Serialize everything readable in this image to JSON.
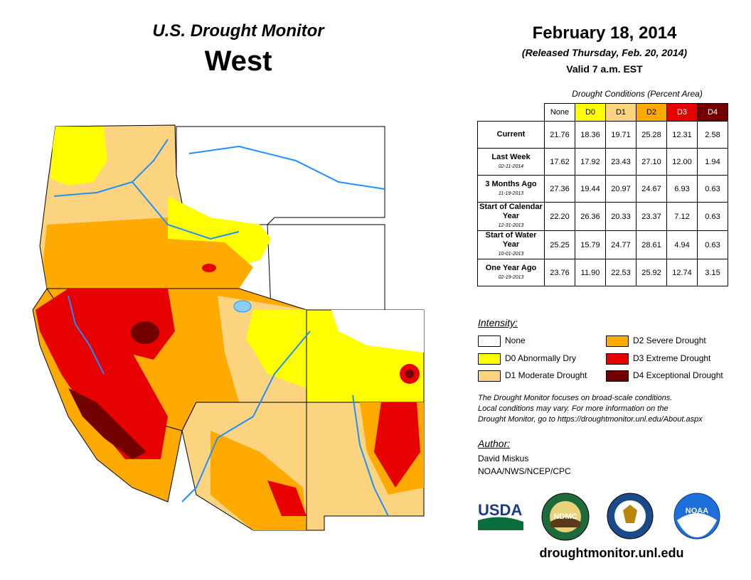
{
  "header": {
    "title": "U.S. Drought Monitor",
    "region": "West",
    "date": "February 18, 2014",
    "released": "(Released Thursday, Feb. 20, 2014)",
    "valid": "Valid 7 a.m. EST"
  },
  "table": {
    "caption": "Drought Conditions (Percent Area)",
    "columns": [
      "None",
      "D0",
      "D1",
      "D2",
      "D3",
      "D4"
    ],
    "rows": [
      {
        "label": "Current",
        "sub": "",
        "values": [
          "21.76",
          "18.36",
          "19.71",
          "25.28",
          "12.31",
          "2.58"
        ]
      },
      {
        "label": "Last Week",
        "sub": "02-11-2014",
        "values": [
          "17.62",
          "17.92",
          "23.43",
          "27.10",
          "12.00",
          "1.94"
        ]
      },
      {
        "label": "3 Months Ago",
        "sub": "11-19-2013",
        "values": [
          "27.36",
          "19.44",
          "20.97",
          "24.67",
          "6.93",
          "0.63"
        ]
      },
      {
        "label": "Start of Calendar Year",
        "sub": "12-31-2013",
        "values": [
          "22.20",
          "26.36",
          "20.33",
          "23.37",
          "7.12",
          "0.63"
        ]
      },
      {
        "label": "Start of Water Year",
        "sub": "10-01-2013",
        "values": [
          "25.25",
          "15.79",
          "24.77",
          "28.61",
          "4.94",
          "0.63"
        ]
      },
      {
        "label": "One Year Ago",
        "sub": "02-19-2013",
        "values": [
          "23.76",
          "11.90",
          "22.53",
          "25.92",
          "12.74",
          "3.15"
        ]
      }
    ]
  },
  "legend": {
    "title": "Intensity:",
    "items": [
      {
        "label": "None",
        "color": "#ffffff"
      },
      {
        "label": "D0 Abnormally Dry",
        "color": "#ffff00"
      },
      {
        "label": "D1 Moderate Drought",
        "color": "#fcd37f"
      },
      {
        "label": "D2 Severe Drought",
        "color": "#ffaa00"
      },
      {
        "label": "D3 Extreme Drought",
        "color": "#e60000"
      },
      {
        "label": "D4 Exceptional Drought",
        "color": "#730000"
      }
    ]
  },
  "note": {
    "line1": "The Drought Monitor focuses on broad-scale conditions.",
    "line2": "Local conditions may vary. For more information on the",
    "line3": "Drought Monitor, go to https://droughtmonitor.unl.edu/About.aspx"
  },
  "author": {
    "label": "Author:",
    "name": "David Miskus",
    "org": "NOAA/NWS/NCEP/CPC"
  },
  "logos": {
    "usda": "USDA",
    "ndmc": "NDMC",
    "noaa": "NOAA"
  },
  "colors": {
    "water": "#1e90ff",
    "none": "#ffffff",
    "d0": "#ffff00",
    "d1": "#fcd37f",
    "d2": "#ffaa00",
    "d3": "#e60000",
    "d4": "#730000"
  },
  "website": "droughtmonitor.unl.edu"
}
